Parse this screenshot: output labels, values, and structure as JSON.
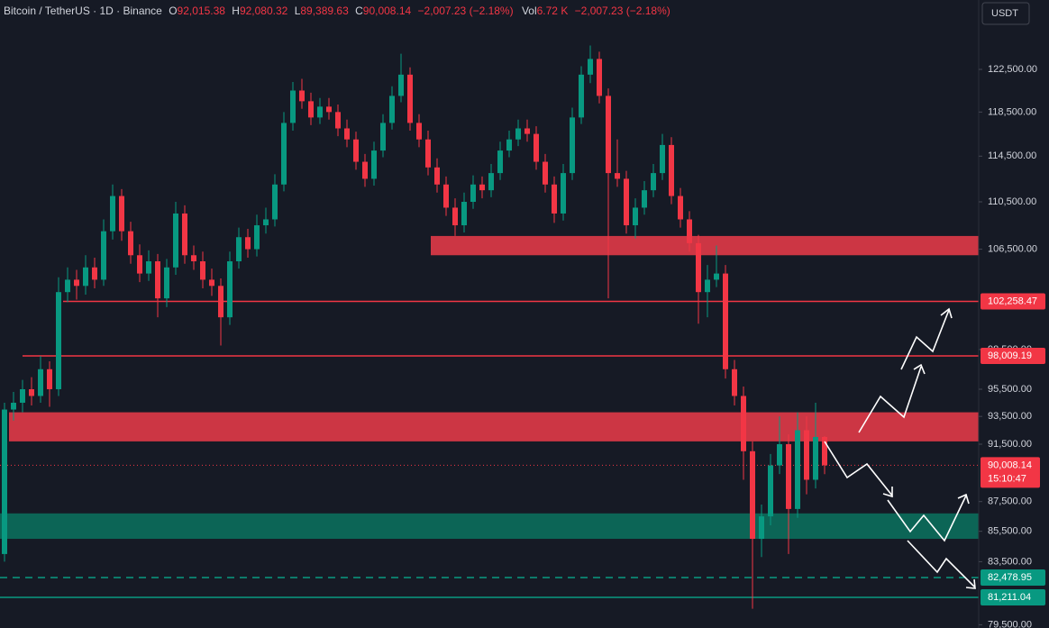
{
  "chart_data": {
    "type": "candlestick",
    "symbol": "Bitcoin / TetherUS · 1D · Binance",
    "legend": [
      {
        "key": "O",
        "value": "92,015.38"
      },
      {
        "key": "H",
        "value": "92,080.32"
      },
      {
        "key": "L",
        "value": "89,389.63"
      },
      {
        "key": "C",
        "value": "90,008.14"
      }
    ],
    "change": "−2,007.23 (−2.18%)",
    "volume_key": "Vol",
    "volume": "6.72 K",
    "volume_change": "−2,007.23 (−2.18%)",
    "currency": "USDT",
    "log_scale": true,
    "ylim": [
      79300,
      129300
    ],
    "yticks": [
      {
        "value": 122500,
        "label": "122,500.00"
      },
      {
        "value": 118500,
        "label": "118,500.00"
      },
      {
        "value": 114500,
        "label": "114,500.00"
      },
      {
        "value": 110500,
        "label": "110,500.00"
      },
      {
        "value": 106500,
        "label": "106,500.00"
      },
      {
        "value": 98500,
        "label": "98,500.00"
      },
      {
        "value": 95500,
        "label": "95,500.00"
      },
      {
        "value": 93500,
        "label": "93,500.00"
      },
      {
        "value": 91500,
        "label": "91,500.00"
      },
      {
        "value": 87500,
        "label": "87,500.00"
      },
      {
        "value": 85500,
        "label": "85,500.00"
      },
      {
        "value": 83500,
        "label": "83,500.00"
      },
      {
        "value": 79500,
        "label": "79,500.00"
      }
    ],
    "up_color": "#089981",
    "down_color": "#f23645",
    "candles": [
      [
        84000,
        94500,
        83500,
        94000
      ],
      [
        94000,
        95300,
        93200,
        94500
      ],
      [
        94500,
        96200,
        93800,
        95500
      ],
      [
        95500,
        96400,
        94300,
        95000
      ],
      [
        95000,
        98000,
        94500,
        97000
      ],
      [
        97000,
        97600,
        94200,
        95500
      ],
      [
        95500,
        104200,
        95000,
        103000
      ],
      [
        103000,
        105000,
        102200,
        104000
      ],
      [
        104000,
        104800,
        102400,
        103500
      ],
      [
        103500,
        106000,
        102800,
        105000
      ],
      [
        105000,
        105800,
        103300,
        104000
      ],
      [
        104000,
        109000,
        103500,
        108000
      ],
      [
        108000,
        112000,
        107300,
        111000
      ],
      [
        111000,
        111600,
        107200,
        108000
      ],
      [
        108000,
        108800,
        105300,
        106000
      ],
      [
        106000,
        106900,
        103800,
        104500
      ],
      [
        104500,
        106400,
        103900,
        105500
      ],
      [
        105500,
        106100,
        101000,
        102500
      ],
      [
        102500,
        105700,
        101800,
        105000
      ],
      [
        105000,
        110500,
        104400,
        109500
      ],
      [
        109500,
        110200,
        105300,
        106000
      ],
      [
        106000,
        106800,
        104800,
        105500
      ],
      [
        105500,
        106300,
        103300,
        104000
      ],
      [
        104000,
        104900,
        102700,
        103500
      ],
      [
        103500,
        104100,
        98800,
        101000
      ],
      [
        101000,
        106300,
        100400,
        105500
      ],
      [
        105500,
        108300,
        104900,
        107500
      ],
      [
        107500,
        108200,
        105800,
        106500
      ],
      [
        106500,
        109400,
        105900,
        108500
      ],
      [
        108500,
        110000,
        107800,
        109000
      ],
      [
        109000,
        112900,
        108400,
        112000
      ],
      [
        112000,
        118500,
        111400,
        117500
      ],
      [
        117500,
        121300,
        116800,
        120500
      ],
      [
        120500,
        121600,
        118800,
        119500
      ],
      [
        119500,
        120300,
        117300,
        118000
      ],
      [
        118000,
        119800,
        117400,
        119000
      ],
      [
        119000,
        119800,
        117800,
        118500
      ],
      [
        118500,
        119200,
        116300,
        117000
      ],
      [
        117000,
        117800,
        115300,
        116000
      ],
      [
        116000,
        116700,
        113300,
        114000
      ],
      [
        114000,
        114700,
        111800,
        112500
      ],
      [
        112500,
        115800,
        111900,
        115000
      ],
      [
        115000,
        118300,
        114400,
        117500
      ],
      [
        117500,
        120900,
        116900,
        120000
      ],
      [
        120000,
        124000,
        119400,
        122000
      ],
      [
        122000,
        122700,
        116800,
        117500
      ],
      [
        117500,
        118300,
        115300,
        116000
      ],
      [
        116000,
        116800,
        112800,
        113500
      ],
      [
        113500,
        114300,
        111300,
        112000
      ],
      [
        112000,
        112700,
        109300,
        110000
      ],
      [
        110000,
        110800,
        107600,
        108500
      ],
      [
        108500,
        111300,
        107900,
        110500
      ],
      [
        110500,
        112800,
        109900,
        112000
      ],
      [
        112000,
        112700,
        110800,
        111500
      ],
      [
        111500,
        113800,
        110900,
        113000
      ],
      [
        113000,
        115800,
        112400,
        115000
      ],
      [
        115000,
        116800,
        114400,
        116000
      ],
      [
        116000,
        117800,
        115400,
        117000
      ],
      [
        117000,
        117800,
        115800,
        116500
      ],
      [
        116500,
        117200,
        113300,
        114000
      ],
      [
        114000,
        114700,
        111300,
        112000
      ],
      [
        112000,
        112700,
        108700,
        109500
      ],
      [
        109500,
        113800,
        108900,
        113000
      ],
      [
        113000,
        118900,
        112400,
        118000
      ],
      [
        118000,
        122800,
        117400,
        122000
      ],
      [
        122000,
        124800,
        121200,
        123500
      ],
      [
        123500,
        124200,
        119300,
        120000
      ],
      [
        120000,
        120700,
        102500,
        113000
      ],
      [
        113000,
        116000,
        111800,
        112500
      ],
      [
        112500,
        113200,
        107800,
        108500
      ],
      [
        108500,
        110800,
        107400,
        110000
      ],
      [
        110000,
        112300,
        109400,
        111500
      ],
      [
        111500,
        113800,
        110900,
        113000
      ],
      [
        113000,
        116500,
        112400,
        115500
      ],
      [
        115500,
        116200,
        110300,
        111000
      ],
      [
        111000,
        111700,
        108300,
        109000
      ],
      [
        109000,
        109700,
        106300,
        107000
      ],
      [
        107000,
        107700,
        100500,
        103000
      ],
      [
        103000,
        105200,
        101000,
        104000
      ],
      [
        104000,
        106800,
        103400,
        104500
      ],
      [
        104500,
        105200,
        96300,
        97000
      ],
      [
        97000,
        97700,
        94300,
        95000
      ],
      [
        95000,
        95700,
        89000,
        91000
      ],
      [
        91000,
        91700,
        80500,
        85000
      ],
      [
        85000,
        87300,
        83800,
        86500
      ],
      [
        86500,
        90800,
        85900,
        90000
      ],
      [
        90000,
        93500,
        89400,
        91500
      ],
      [
        91500,
        92200,
        84000,
        87000
      ],
      [
        87000,
        93800,
        86400,
        92500
      ],
      [
        92500,
        93500,
        88000,
        89000
      ],
      [
        89000,
        94500,
        88400,
        92015.38
      ],
      [
        92015.38,
        92080.32,
        89389.63,
        90008.14
      ]
    ],
    "zones": [
      {
        "low": 106000,
        "high": 107600,
        "color": "#e03a48"
      },
      {
        "low": 91700,
        "high": 93800,
        "color": "#e03a48"
      },
      {
        "low": 85000,
        "high": 86700,
        "color": "#0b6e5c"
      }
    ],
    "levels": [
      {
        "value": 102258.47,
        "label": "102,258.47",
        "color": "#f23645",
        "style": "solid"
      },
      {
        "value": 98009.19,
        "label": "98,009.19",
        "color": "#f23645",
        "style": "solid"
      },
      {
        "value": 82478.95,
        "label": "82,478.95",
        "color": "#089981",
        "style": "dashed"
      },
      {
        "value": 81211.04,
        "label": "81,211.04",
        "color": "#089981",
        "style": "solid"
      }
    ],
    "last_price": {
      "value": 90008.14,
      "label": "90,008.14",
      "countdown": "15:10:47",
      "color": "#f23645"
    }
  }
}
